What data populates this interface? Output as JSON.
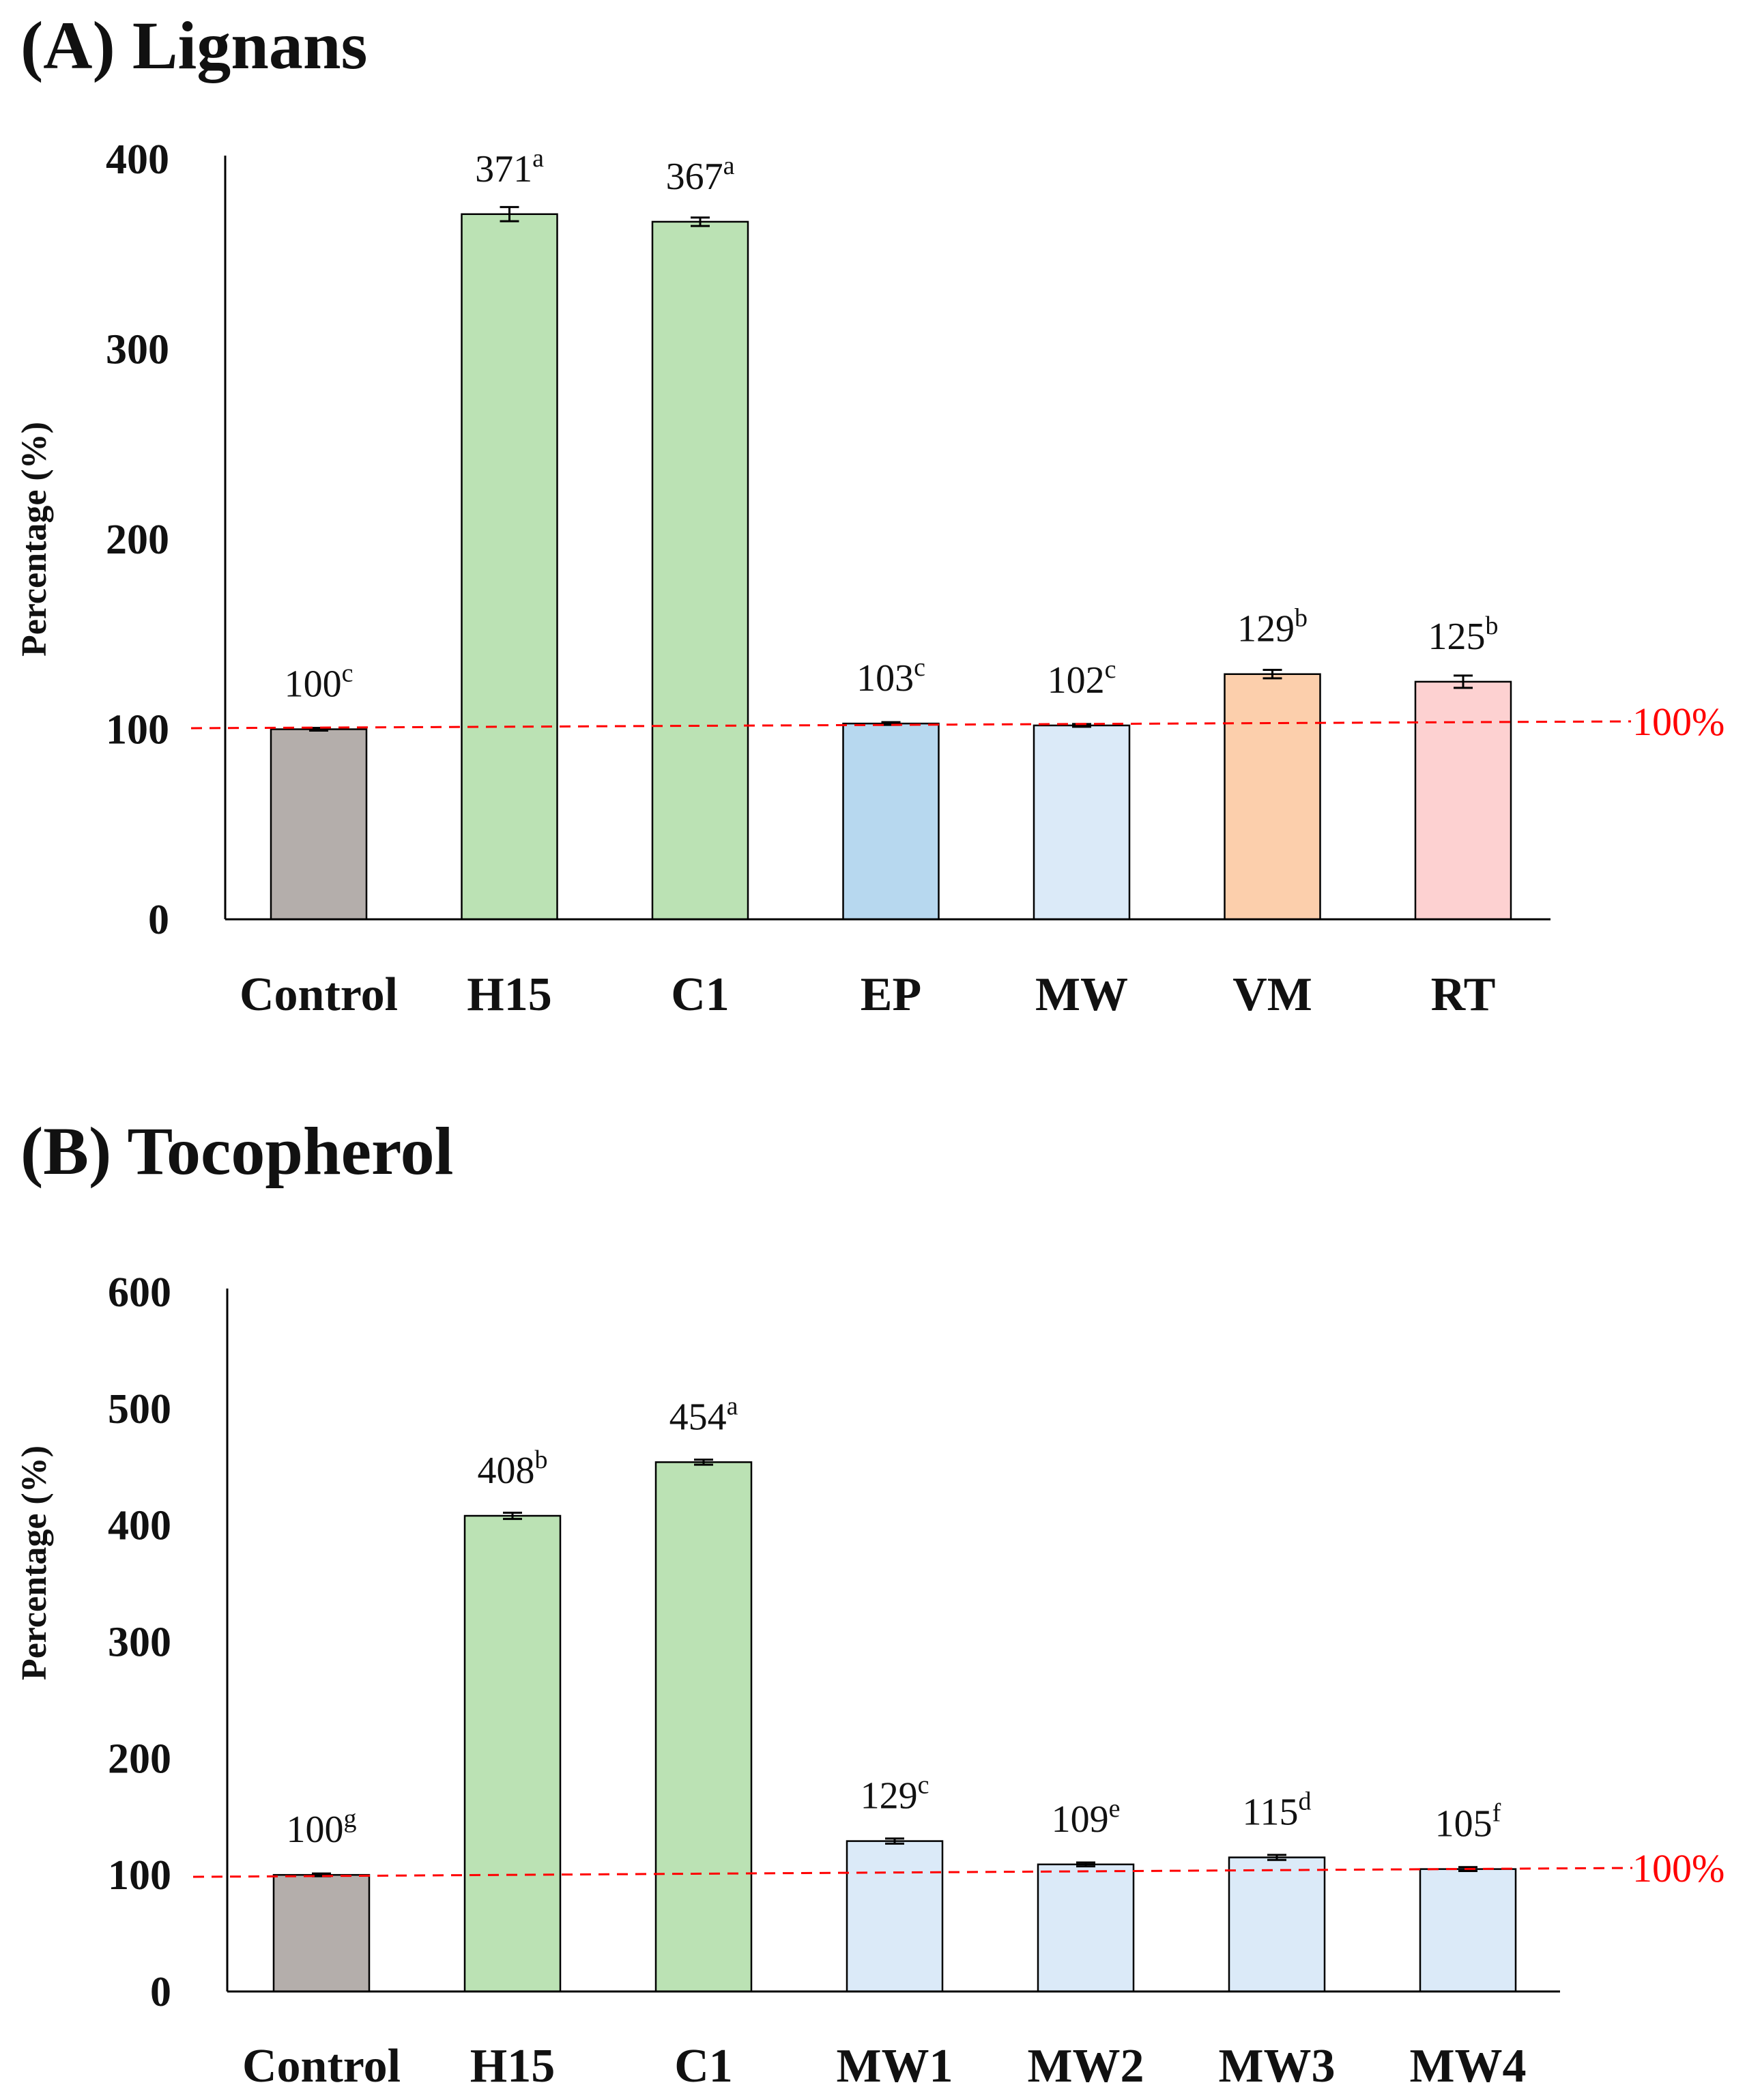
{
  "chart_data": [
    {
      "type": "bar",
      "title": "(A) Lignans",
      "ylabel": "Percentage (%)",
      "xlabel": "",
      "ylim": [
        0,
        400
      ],
      "yticks": [
        0,
        100,
        200,
        300,
        400
      ],
      "categories": [
        "Control",
        "H15",
        "C1",
        "EP",
        "MW",
        "VM",
        "RT"
      ],
      "values": [
        100,
        371,
        367,
        103,
        102,
        129,
        125
      ],
      "errors": [
        0,
        3,
        1.5,
        0,
        0,
        1.5,
        2.5
      ],
      "significance": [
        "c",
        "a",
        "a",
        "c",
        "c",
        "b",
        "b"
      ],
      "colors": [
        "#b4aeab",
        "#bbe2b4",
        "#bbe2b4",
        "#b7d8ef",
        "#dbeaf8",
        "#fccfac",
        "#fdd1d1"
      ],
      "reference_line": {
        "value": 100,
        "label": "100%",
        "color": "#ff0000"
      }
    },
    {
      "type": "bar",
      "title": "(B) Tocopherol",
      "ylabel": "Percentage (%)",
      "xlabel": "",
      "ylim": [
        0,
        600
      ],
      "yticks": [
        0,
        100,
        200,
        300,
        400,
        500,
        600
      ],
      "categories": [
        "Control",
        "H15",
        "C1",
        "MW1",
        "MW2",
        "MW3",
        "MW4"
      ],
      "values": [
        100,
        408,
        454,
        129,
        109,
        115,
        105
      ],
      "errors": [
        0,
        1.5,
        1,
        1,
        0.5,
        1,
        0.5
      ],
      "significance": [
        "g",
        "b",
        "a",
        "c",
        "e",
        "d",
        "f"
      ],
      "colors": [
        "#b4aeab",
        "#bbe2b4",
        "#bbe2b4",
        "#dbeaf8",
        "#dbeaf8",
        "#dbeaf8",
        "#dbeaf8"
      ],
      "reference_line": {
        "value": 100,
        "label": "100%",
        "color": "#ff0000"
      }
    }
  ]
}
